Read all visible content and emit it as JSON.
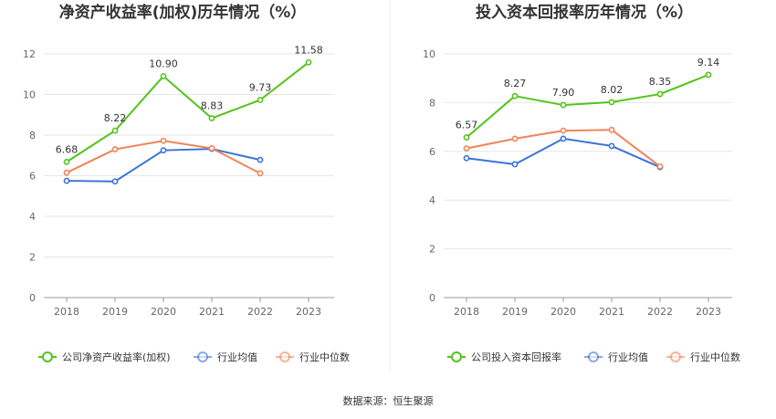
{
  "source": "数据来源：恒生聚源",
  "chart_data": [
    {
      "type": "line",
      "title": "净资产收益率(加权)历年情况（%）",
      "categories": [
        "2018",
        "2019",
        "2020",
        "2021",
        "2022",
        "2023"
      ],
      "ylim": [
        0,
        12
      ],
      "yticks": [
        "0",
        "2",
        "4",
        "6",
        "8",
        "10",
        "12"
      ],
      "grid": true,
      "legend_position": "bottom",
      "series": [
        {
          "name": "公司净资产收益率(加权)",
          "color": "#52c41a",
          "values": [
            6.68,
            8.22,
            10.9,
            8.83,
            9.73,
            11.58
          ],
          "labels": [
            "6.68",
            "8.22",
            "10.90",
            "8.83",
            "9.73",
            "11.58"
          ]
        },
        {
          "name": "行业均值",
          "color": "#3b73d9",
          "values": [
            5.75,
            5.72,
            7.25,
            7.32,
            6.78,
            null
          ]
        },
        {
          "name": "行业中位数",
          "color": "#f0845a",
          "values": [
            6.15,
            7.3,
            7.72,
            7.35,
            6.12,
            null
          ]
        }
      ]
    },
    {
      "type": "line",
      "title": "投入资本回报率历年情况（%）",
      "categories": [
        "2018",
        "2019",
        "2020",
        "2021",
        "2022",
        "2023"
      ],
      "ylim": [
        0,
        10
      ],
      "yticks": [
        "0",
        "2",
        "4",
        "6",
        "8",
        "10"
      ],
      "grid": true,
      "legend_position": "bottom",
      "series": [
        {
          "name": "公司投入资本回报率",
          "color": "#52c41a",
          "values": [
            6.57,
            8.27,
            7.9,
            8.02,
            8.35,
            9.14
          ],
          "labels": [
            "6.57",
            "8.27",
            "7.90",
            "8.02",
            "8.35",
            "9.14"
          ]
        },
        {
          "name": "行业均值",
          "color": "#3b73d9",
          "values": [
            5.72,
            5.47,
            6.52,
            6.22,
            5.35,
            null
          ]
        },
        {
          "name": "行业中位数",
          "color": "#f0845a",
          "values": [
            6.12,
            6.52,
            6.85,
            6.88,
            5.38,
            null
          ]
        }
      ]
    }
  ]
}
